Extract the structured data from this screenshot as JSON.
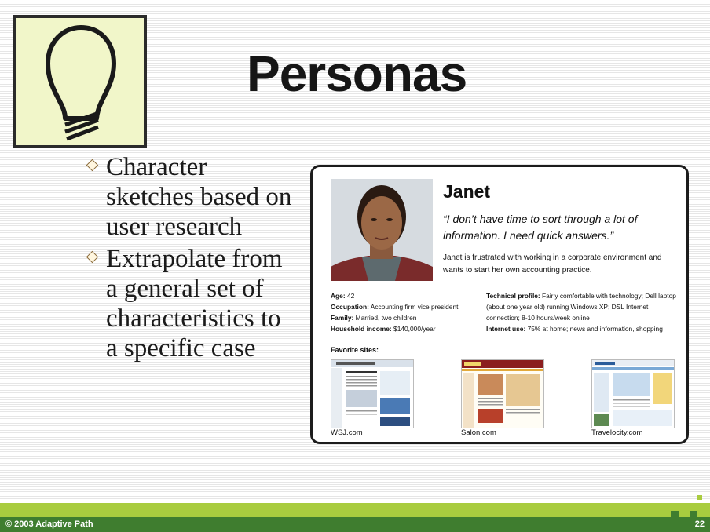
{
  "slide": {
    "title": "Personas",
    "bullets": [
      "Character sketches based on user research",
      "Extrapolate from a general set of characteristics to a specific case"
    ]
  },
  "persona": {
    "name": "Janet",
    "quote": "“I don’t have time to sort through a lot of information. I need quick answers.”",
    "summary": "Janet is frustrated with working in a corporate environment and wants to start her own accounting practice.",
    "details_left": [
      {
        "label": "Age:",
        "value": "42"
      },
      {
        "label": "Occupation:",
        "value": "Accounting firm vice president"
      },
      {
        "label": "Family:",
        "value": "Married, two children"
      },
      {
        "label": "Household income:",
        "value": "$140,000/year"
      }
    ],
    "details_right": [
      {
        "label": "Technical profile:",
        "value": "Fairly comfortable with technology; Dell laptop (about one year old) running Windows XP; DSL Internet connection; 8-10 hours/week online"
      },
      {
        "label": "Internet use:",
        "value": "75% at home; news and information, shopping"
      }
    ],
    "favorite_sites_label": "Favorite sites:",
    "favorite_sites": [
      "WSJ.com",
      "Salon.com",
      "Travelocity.com"
    ]
  },
  "footer": {
    "copyright": "© 2003 Adaptive Path",
    "page_number": "22"
  },
  "colors": {
    "bulb_bg": "#f1f6c9",
    "footer_light": "#a9cc3f",
    "footer_dark": "#3f7d2f"
  },
  "icons": [
    "lightbulb-icon",
    "diamond-bullet-icon"
  ]
}
